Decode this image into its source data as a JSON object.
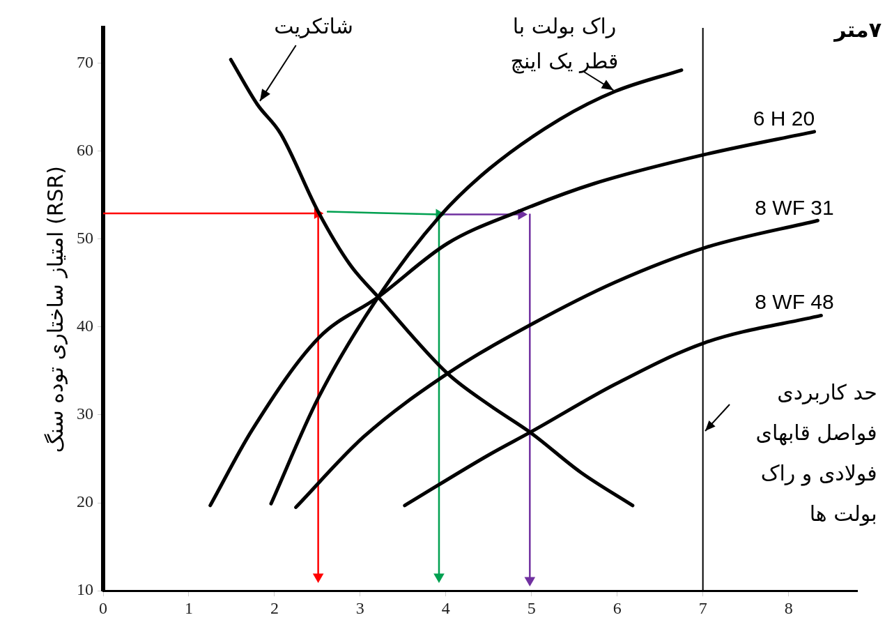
{
  "chart_data": {
    "type": "line",
    "ylabel": "امتیاز ساختاری توده سنگ (RSR)",
    "xlim": [
      0,
      8.8
    ],
    "ylim": [
      10,
      74
    ],
    "xticks": [
      0,
      1,
      2,
      3,
      4,
      5,
      6,
      7,
      8
    ],
    "yticks": [
      10,
      20,
      30,
      40,
      50,
      60,
      70
    ],
    "grid": false,
    "legend": false,
    "line_style": "solid",
    "series": [
      {
        "name": "شاتکریت",
        "color": "#000000",
        "marker": "none",
        "x": [
          1.49,
          1.8,
          2.07,
          2.51,
          2.88,
          3.21,
          4.02,
          4.51,
          5.0,
          5.57,
          6.18
        ],
        "values": [
          70.4,
          65.3,
          62,
          53.1,
          47.1,
          43.4,
          34.7,
          31.1,
          27.9,
          23.5,
          19.7
        ]
      },
      {
        "name": "راک بولت با قطر یک اینچ",
        "color": "#000000",
        "marker": "none",
        "x": [
          1.96,
          2.51,
          3.21,
          3.94,
          4.51,
          5.33,
          5.98,
          6.75
        ],
        "values": [
          19.9,
          31.9,
          43.4,
          52.7,
          58,
          63.6,
          66.8,
          69.2
        ]
      },
      {
        "name": "6 H 20",
        "color": "#000000",
        "marker": "none",
        "x": [
          1.25,
          1.74,
          2.51,
          3.21,
          4.02,
          4.84,
          5.73,
          7.02,
          8.3
        ],
        "values": [
          19.7,
          28.3,
          38.7,
          43.4,
          49.5,
          53.1,
          56.3,
          59.6,
          62.2
        ]
      },
      {
        "name": "8 WF 31",
        "color": "#000000",
        "marker": "none",
        "x": [
          2.25,
          3.04,
          4.02,
          5.0,
          5.98,
          7.02,
          8.34
        ],
        "values": [
          19.5,
          27.5,
          34.7,
          40.3,
          45.1,
          49,
          52.1
        ]
      },
      {
        "name": "8 WF 48",
        "color": "#000000",
        "marker": "none",
        "x": [
          3.52,
          4.51,
          5.0,
          5.98,
          7.02,
          8.38
        ],
        "values": [
          19.7,
          25.5,
          28.1,
          33.5,
          38.2,
          41.3
        ]
      },
      {
        "color": "#ff0000",
        "marker": "triangle",
        "x": [
          0,
          2.5
        ],
        "values": [
          52.9,
          52.9
        ]
      },
      {
        "color": "#ff0000",
        "marker": "triangle",
        "x": [
          2.51,
          2.51
        ],
        "values": [
          52.9,
          11.6
        ]
      },
      {
        "color": "#00a050",
        "marker": "triangle",
        "x": [
          2.62,
          3.92
        ],
        "values": [
          53.1,
          52.8
        ]
      },
      {
        "color": "#00a050",
        "marker": "triangle",
        "x": [
          3.92,
          3.92
        ],
        "values": [
          52.8,
          11.6
        ]
      },
      {
        "color": "#7030a0",
        "marker": "triangle",
        "x": [
          3.96,
          4.88
        ],
        "values": [
          52.8,
          52.8
        ]
      },
      {
        "color": "#7030a0",
        "marker": "triangle",
        "x": [
          4.98,
          4.98
        ],
        "values": [
          52.8,
          11.2
        ]
      }
    ],
    "ref_lines": [
      {
        "axis": "x",
        "value": 7,
        "label": "حد کاربردی فواصل قابهای فولادی و راک بولت ها",
        "color": "#000000"
      }
    ],
    "annotations": [
      "۷متر"
    ]
  }
}
